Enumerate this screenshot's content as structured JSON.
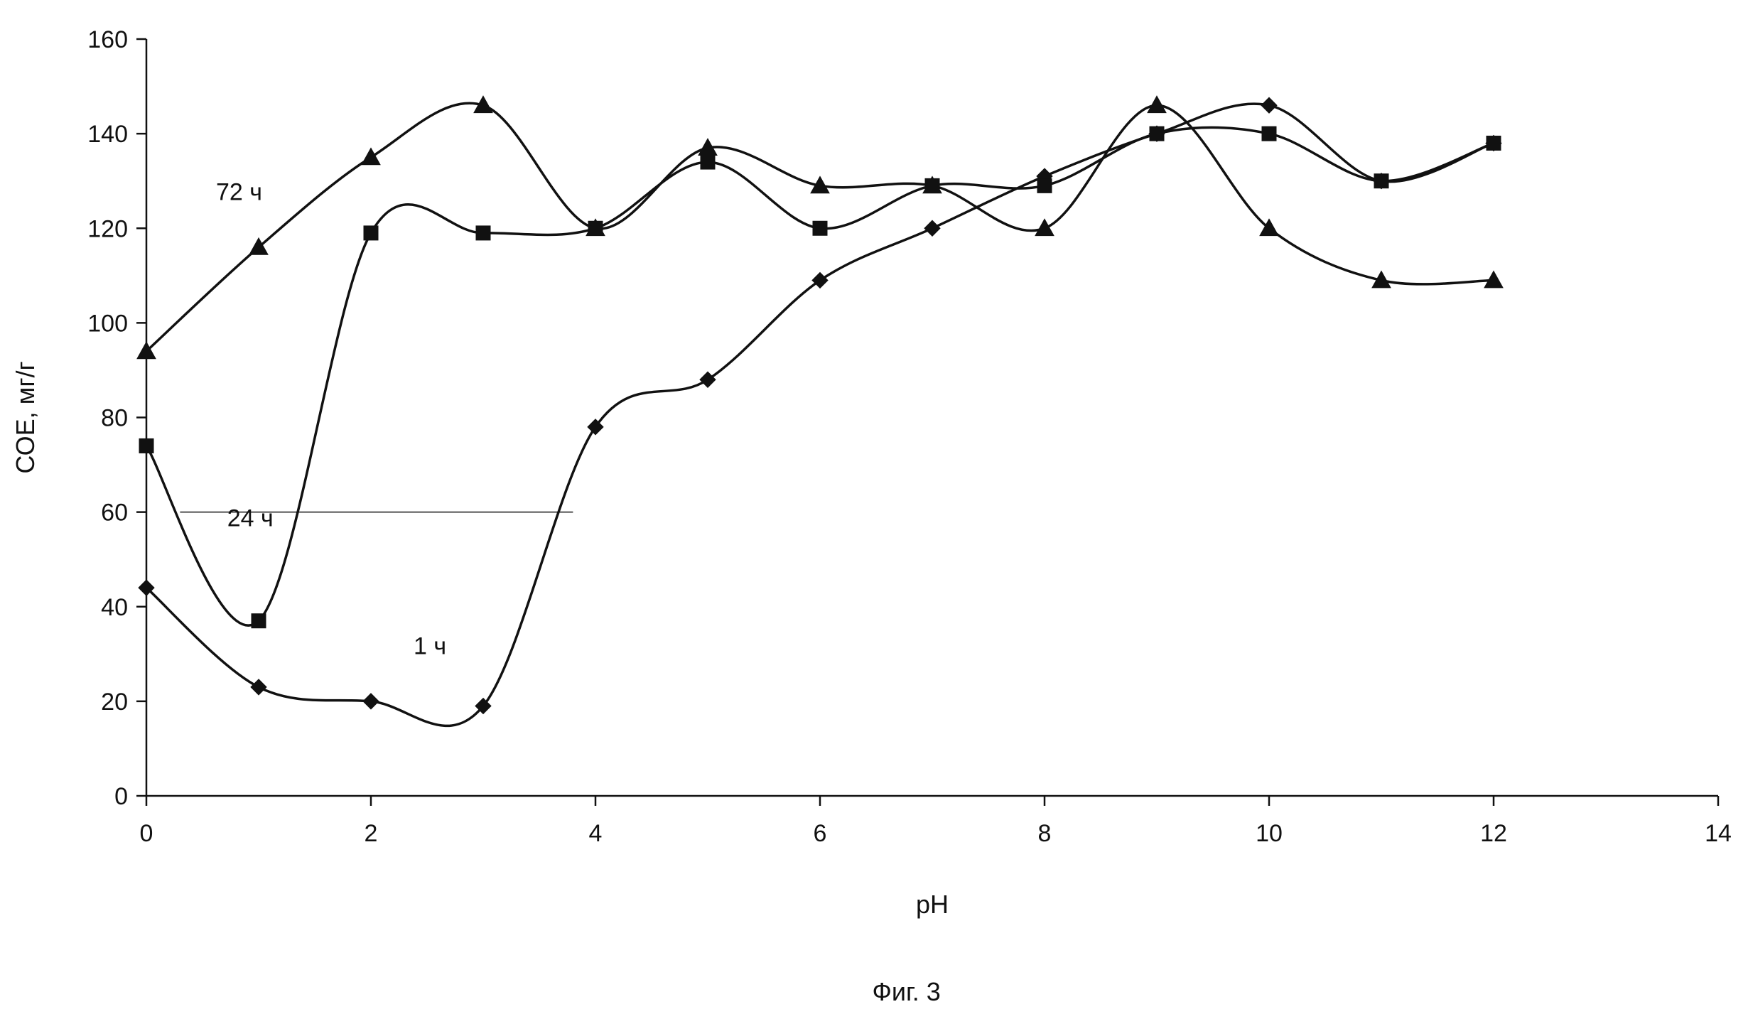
{
  "chart_data": {
    "type": "line",
    "xlabel": "pH",
    "ylabel": "СОЕ, мг/г",
    "caption": "Фиг. 3",
    "xlim": [
      0,
      14
    ],
    "ylim": [
      0,
      160
    ],
    "xticks": [
      "0",
      "2",
      "4",
      "6",
      "8",
      "10",
      "12",
      "14"
    ],
    "yticks": [
      "0",
      "20",
      "40",
      "60",
      "80",
      "100",
      "120",
      "140",
      "160"
    ],
    "grid": false,
    "legend": "none",
    "curves": "smoothed",
    "series": [
      {
        "name": "1 ч",
        "marker": "diamond",
        "x": [
          0,
          1,
          2,
          3,
          4,
          5,
          6,
          7,
          8,
          9,
          10,
          11,
          12
        ],
        "y": [
          44,
          23,
          20,
          19,
          78,
          88,
          109,
          120,
          131,
          140,
          146,
          130,
          138
        ]
      },
      {
        "name": "24 ч",
        "marker": "square",
        "x": [
          0,
          1,
          2,
          3,
          4,
          5,
          6,
          7,
          8,
          9,
          10,
          11,
          12
        ],
        "y": [
          74,
          37,
          119,
          119,
          120,
          134,
          120,
          129,
          129,
          140,
          140,
          130,
          138
        ]
      },
      {
        "name": "72 ч",
        "marker": "triangle",
        "x": [
          0,
          1,
          2,
          3,
          4,
          5,
          6,
          7,
          8,
          9,
          10,
          11,
          12
        ],
        "y": [
          94,
          116,
          135,
          146,
          120,
          137,
          129,
          129,
          120,
          146,
          120,
          109,
          109
        ]
      }
    ]
  }
}
